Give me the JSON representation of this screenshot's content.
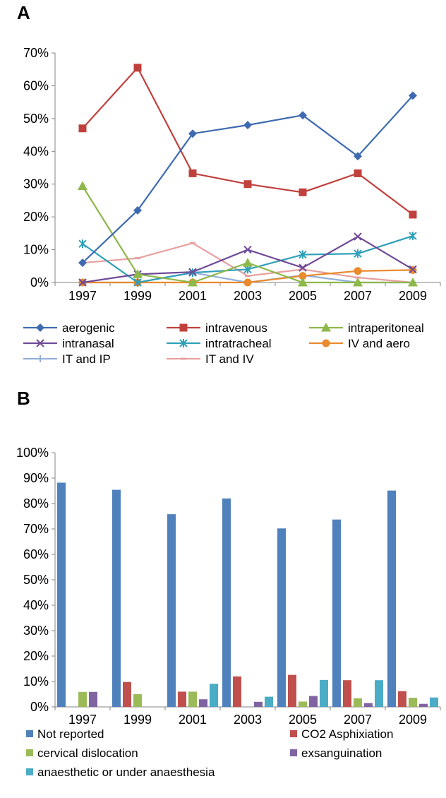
{
  "panels": {
    "a_label": "A",
    "b_label": "B"
  },
  "chart_data": [
    {
      "type": "line",
      "panel": "A",
      "x": [
        "1997",
        "1999",
        "2001",
        "2003",
        "2005",
        "2007",
        "2009"
      ],
      "ylim": [
        0,
        70
      ],
      "yticks": [
        "0%",
        "10%",
        "20%",
        "30%",
        "40%",
        "50%",
        "60%",
        "70%"
      ],
      "grid": false,
      "legend_position": "bottom",
      "series": [
        {
          "name": "aerogenic",
          "color": "#3E6BB0",
          "marker": "diamond",
          "values": [
            6,
            22,
            45.4,
            48,
            51,
            38.5,
            57
          ]
        },
        {
          "name": "intravenous",
          "color": "#C0403C",
          "marker": "square",
          "values": [
            47,
            65.5,
            33.3,
            30,
            27.5,
            33.3,
            20.7
          ]
        },
        {
          "name": "intraperitoneal",
          "color": "#8DB84A",
          "marker": "triangle",
          "values": [
            29.4,
            2.5,
            0,
            6,
            0,
            0,
            0
          ]
        },
        {
          "name": "intranasal",
          "color": "#6F4A98",
          "marker": "x",
          "values": [
            0,
            2.5,
            3.2,
            10,
            4.5,
            14,
            4
          ]
        },
        {
          "name": "intratracheal",
          "color": "#2FA0B8",
          "marker": "asterisk",
          "values": [
            11.8,
            0,
            3,
            4,
            8.5,
            8.8,
            14.2
          ]
        },
        {
          "name": "IV and aero",
          "color": "#EA8A2E",
          "marker": "circle",
          "values": [
            0,
            0,
            0,
            0,
            2,
            3.5,
            3.8
          ]
        },
        {
          "name": "IT and IP",
          "color": "#93B0D8",
          "marker": "plus",
          "values": [
            0,
            0,
            3,
            0,
            2.2,
            0,
            0
          ]
        },
        {
          "name": "IT and IV",
          "color": "#E8A0A0",
          "marker": "dash",
          "values": [
            6,
            7.4,
            12,
            2,
            4,
            1.5,
            0
          ]
        }
      ]
    },
    {
      "type": "bar",
      "panel": "B",
      "categories": [
        "1997",
        "1999",
        "2001",
        "2003",
        "2005",
        "2007",
        "2009"
      ],
      "ylim": [
        0,
        100
      ],
      "yticks": [
        "0%",
        "10%",
        "20%",
        "30%",
        "40%",
        "50%",
        "60%",
        "70%",
        "80%",
        "90%",
        "100%"
      ],
      "grid": false,
      "legend_position": "bottom",
      "series": [
        {
          "name": "Not reported",
          "color": "#4F81BD",
          "values": [
            88.2,
            85.4,
            75.8,
            82,
            70.2,
            73.7,
            85.1
          ]
        },
        {
          "name": "CO2 Asphixiation",
          "color": "#C0504D",
          "values": [
            0,
            9.8,
            6,
            12,
            12.6,
            10.5,
            6.2
          ]
        },
        {
          "name": "cervical dislocation",
          "color": "#9BBB59",
          "values": [
            5.9,
            5,
            6,
            0,
            2.1,
            3.4,
            3.6
          ]
        },
        {
          "name": "exsanguination",
          "color": "#8064A2",
          "values": [
            5.9,
            0,
            3,
            2,
            4.3,
            1.5,
            1.2
          ]
        },
        {
          "name": "anaesthetic or under anaesthesia",
          "color": "#4BACC6",
          "values": [
            0,
            0,
            9.1,
            4,
            10.6,
            10.5,
            3.7
          ]
        }
      ]
    }
  ]
}
